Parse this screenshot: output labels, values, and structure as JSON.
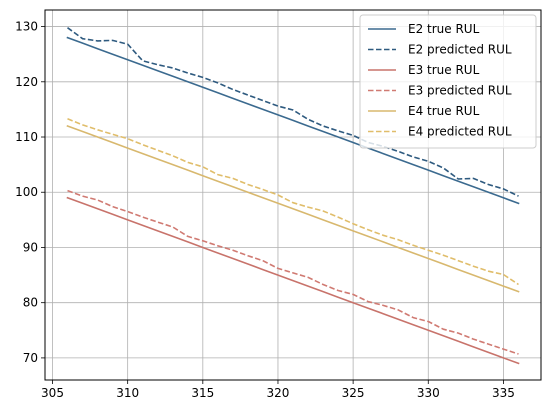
{
  "chart_data": {
    "type": "line",
    "title": "",
    "xlabel": "",
    "ylabel": "",
    "xlim": [
      304.5,
      337.5
    ],
    "ylim": [
      66,
      133
    ],
    "grid": true,
    "legend_position": "top-right",
    "x_ticks": [
      305,
      310,
      315,
      320,
      325,
      330,
      335
    ],
    "y_ticks": [
      70,
      80,
      90,
      100,
      110,
      120,
      130
    ],
    "x": [
      306,
      307,
      308,
      309,
      310,
      311,
      312,
      313,
      314,
      315,
      316,
      317,
      318,
      319,
      320,
      321,
      322,
      323,
      324,
      325,
      326,
      327,
      328,
      329,
      330,
      331,
      332,
      333,
      334,
      335,
      336
    ],
    "series": [
      {
        "name": "E2 true RUL",
        "color": "#3b6a8f",
        "dash": "solid",
        "values": [
          128,
          127,
          126,
          125,
          124,
          123,
          122,
          121,
          120,
          119,
          118,
          117,
          116,
          115,
          114,
          113,
          112,
          111,
          110,
          109,
          108,
          107,
          106,
          105,
          104,
          103,
          102,
          101,
          100,
          99,
          98
        ]
      },
      {
        "name": "E2 predicted RUL",
        "color": "#2e5a7f",
        "dash": "dashed",
        "values": [
          129.8,
          127.8,
          127.4,
          127.5,
          126.8,
          123.8,
          123.1,
          122.5,
          121.6,
          120.8,
          119.8,
          118.6,
          117.6,
          116.6,
          115.6,
          114.9,
          113.2,
          112.0,
          111.1,
          110.3,
          109.0,
          108.3,
          107.4,
          106.4,
          105.6,
          104.4,
          102.4,
          102.5,
          101.4,
          100.6,
          99.3
        ]
      },
      {
        "name": "E3 true RUL",
        "color": "#c8736b",
        "dash": "solid",
        "values": [
          99,
          98,
          97,
          96,
          95,
          94,
          93,
          92,
          91,
          90,
          89,
          88,
          87,
          86,
          85,
          84,
          83,
          82,
          81,
          80,
          79,
          78,
          77,
          76,
          75,
          74,
          73,
          72,
          71,
          70,
          69
        ]
      },
      {
        "name": "E3 predicted RUL",
        "color": "#d07a72",
        "dash": "dashed",
        "values": [
          100.3,
          99.3,
          98.6,
          97.4,
          96.5,
          95.5,
          94.6,
          93.7,
          92.0,
          91.2,
          90.3,
          89.5,
          88.5,
          87.6,
          86.2,
          85.4,
          84.6,
          83.3,
          82.2,
          81.5,
          80.2,
          79.5,
          78.7,
          77.3,
          76.6,
          75.2,
          74.5,
          73.4,
          72.5,
          71.6,
          70.7
        ]
      },
      {
        "name": "E4 true RUL",
        "color": "#d8b86e",
        "dash": "solid",
        "values": [
          112,
          111,
          110,
          109,
          108,
          107,
          106,
          105,
          104,
          103,
          102,
          101,
          100,
          99,
          98,
          97,
          96,
          95,
          94,
          93,
          92,
          91,
          90,
          89,
          88,
          87,
          86,
          85,
          84,
          83,
          82
        ]
      },
      {
        "name": "E4 predicted RUL",
        "color": "#e0bd6a",
        "dash": "dashed",
        "values": [
          113.3,
          112.2,
          111.3,
          110.5,
          109.7,
          108.6,
          107.6,
          106.6,
          105.4,
          104.6,
          103.2,
          102.5,
          101.4,
          100.5,
          99.5,
          98.1,
          97.3,
          96.6,
          95.5,
          94.3,
          93.2,
          92.2,
          91.4,
          90.4,
          89.5,
          88.6,
          87.6,
          86.6,
          85.7,
          85.1,
          83.3
        ]
      }
    ]
  }
}
